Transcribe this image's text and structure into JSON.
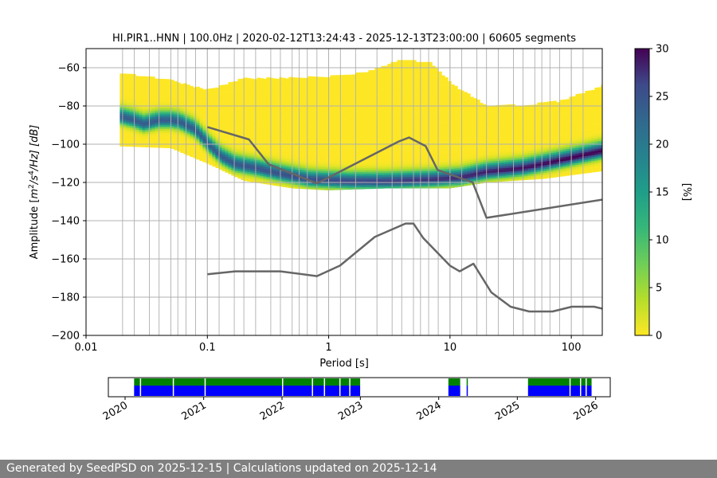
{
  "colors": {
    "grid": "#b0b0b0",
    "noise_model": "#666666",
    "coverage_top": "#008000",
    "coverage_bottom": "#0000ff"
  },
  "footer": {
    "text": "Generated by SeedPSD on 2025-12-15 | Calculations updated on 2025-12-14"
  },
  "chart_data": [
    {
      "type": "heatmap",
      "title": "HI.PIR1..HNN | 100.0Hz | 2020-02-12T13:24:43 - 2025-12-13T23:00:00 | 60605 segments",
      "xlabel": "Period [s]",
      "ylabel_parts": {
        "pre": "Amplitude [",
        "m": "m",
        "e2": "2",
        "s": "/s",
        "e4": "4",
        "hz": "/Hz] [dB]"
      },
      "xscale": "log",
      "xlim": [
        0.01,
        180
      ],
      "ylim": [
        -200,
        -50
      ],
      "x_ticks": [
        {
          "value": 0.01,
          "label": "0.01"
        },
        {
          "value": 0.1,
          "label": "0.1"
        },
        {
          "value": 1,
          "label": "1"
        },
        {
          "value": 10,
          "label": "10"
        },
        {
          "value": 100,
          "label": "100"
        }
      ],
      "y_ticks": [
        {
          "value": -60,
          "label": "−60"
        },
        {
          "value": -80,
          "label": "−80"
        },
        {
          "value": -100,
          "label": "−100"
        },
        {
          "value": -120,
          "label": "−120"
        },
        {
          "value": -140,
          "label": "−140"
        },
        {
          "value": -160,
          "label": "−160"
        },
        {
          "value": -180,
          "label": "−180"
        },
        {
          "value": -200,
          "label": "−200"
        }
      ],
      "grid": true,
      "period_gridlines": [
        0.02,
        0.025,
        0.0333,
        0.04,
        0.05,
        0.0571,
        0.0667,
        0.08,
        0.1,
        0.125,
        0.1667,
        0.2,
        0.25,
        0.3333,
        0.4,
        0.5,
        0.5714,
        0.6667,
        0.8,
        1.0,
        1.25,
        1.6667,
        2.5,
        3.3333,
        4.0,
        5.0,
        5.7143,
        6.6667,
        8.0,
        10,
        12.5,
        16.6667,
        20,
        25,
        33.3333,
        40,
        50,
        57.1429,
        66.6667,
        80,
        100,
        125
      ],
      "heatmap": {
        "x_start": 0.019,
        "x_end": 180,
        "mode_curve": [
          {
            "x": 0.019,
            "y": -86
          },
          {
            "x": 0.025,
            "y": -88
          },
          {
            "x": 0.03,
            "y": -90
          },
          {
            "x": 0.04,
            "y": -88
          },
          {
            "x": 0.05,
            "y": -88
          },
          {
            "x": 0.06,
            "y": -89
          },
          {
            "x": 0.08,
            "y": -93
          },
          {
            "x": 0.1,
            "y": -100
          },
          {
            "x": 0.13,
            "y": -107
          },
          {
            "x": 0.17,
            "y": -111
          },
          {
            "x": 0.25,
            "y": -113
          },
          {
            "x": 0.4,
            "y": -116
          },
          {
            "x": 0.7,
            "y": -119
          },
          {
            "x": 1.5,
            "y": -120
          },
          {
            "x": 3,
            "y": -120
          },
          {
            "x": 7,
            "y": -119
          },
          {
            "x": 12,
            "y": -118
          },
          {
            "x": 20,
            "y": -115
          },
          {
            "x": 40,
            "y": -113
          },
          {
            "x": 80,
            "y": -109
          },
          {
            "x": 180,
            "y": -104
          }
        ],
        "upper_curve": [
          {
            "x": 0.019,
            "y": -63
          },
          {
            "x": 0.05,
            "y": -67
          },
          {
            "x": 0.1,
            "y": -72
          },
          {
            "x": 0.2,
            "y": -66
          },
          {
            "x": 0.4,
            "y": -66
          },
          {
            "x": 1,
            "y": -65
          },
          {
            "x": 2,
            "y": -63
          },
          {
            "x": 4,
            "y": -56
          },
          {
            "x": 7,
            "y": -58
          },
          {
            "x": 11,
            "y": -70
          },
          {
            "x": 20,
            "y": -80
          },
          {
            "x": 40,
            "y": -80
          },
          {
            "x": 80,
            "y": -78
          },
          {
            "x": 180,
            "y": -70
          }
        ],
        "lower_curve": [
          {
            "x": 0.019,
            "y": -101
          },
          {
            "x": 0.05,
            "y": -102
          },
          {
            "x": 0.1,
            "y": -110
          },
          {
            "x": 0.2,
            "y": -119
          },
          {
            "x": 0.5,
            "y": -123
          },
          {
            "x": 1,
            "y": -124
          },
          {
            "x": 3,
            "y": -123
          },
          {
            "x": 10,
            "y": -123
          },
          {
            "x": 20,
            "y": -120
          },
          {
            "x": 60,
            "y": -118
          },
          {
            "x": 180,
            "y": -114
          }
        ]
      },
      "series": [
        {
          "points": [
            {
              "x": 0.1,
              "y": -91
            },
            {
              "x": 0.22,
              "y": -97.5
            },
            {
              "x": 0.32,
              "y": -110.5
            },
            {
              "x": 0.8,
              "y": -120.5
            },
            {
              "x": 3.8,
              "y": -98.5
            },
            {
              "x": 4.6,
              "y": -96.5
            },
            {
              "x": 6.3,
              "y": -101
            },
            {
              "x": 7.9,
              "y": -113.5
            },
            {
              "x": 15.4,
              "y": -120
            },
            {
              "x": 20,
              "y": -138.5
            },
            {
              "x": 180,
              "y": -129
            }
          ]
        },
        {
          "points": [
            {
              "x": 0.1,
              "y": -168
            },
            {
              "x": 0.17,
              "y": -166.5
            },
            {
              "x": 0.4,
              "y": -166.5
            },
            {
              "x": 0.8,
              "y": -169
            },
            {
              "x": 1.24,
              "y": -163.5
            },
            {
              "x": 2.4,
              "y": -148.5
            },
            {
              "x": 4.3,
              "y": -141.5
            },
            {
              "x": 5.0,
              "y": -141.5
            },
            {
              "x": 6.0,
              "y": -149
            },
            {
              "x": 10,
              "y": -163.5
            },
            {
              "x": 12,
              "y": -166.5
            },
            {
              "x": 15.6,
              "y": -162.5
            },
            {
              "x": 21.9,
              "y": -177.5
            },
            {
              "x": 31.6,
              "y": -185
            },
            {
              "x": 45,
              "y": -187.5
            },
            {
              "x": 70,
              "y": -187.5
            },
            {
              "x": 101,
              "y": -185
            },
            {
              "x": 154,
              "y": -185
            },
            {
              "x": 180,
              "y": -186
            }
          ]
        }
      ]
    },
    {
      "type": "colorbar",
      "label": "[%]",
      "range": [
        0,
        30
      ],
      "ticks": [
        {
          "value": 0,
          "label": "0"
        },
        {
          "value": 5,
          "label": "5"
        },
        {
          "value": 10,
          "label": "10"
        },
        {
          "value": 15,
          "label": "15"
        },
        {
          "value": 20,
          "label": "20"
        },
        {
          "value": 25,
          "label": "25"
        },
        {
          "value": 30,
          "label": "30"
        }
      ],
      "colormap_stops": [
        {
          "value": 0,
          "color": "#fde725"
        },
        {
          "value": 3.75,
          "color": "#b5de2b"
        },
        {
          "value": 7.5,
          "color": "#6ece58"
        },
        {
          "value": 11.25,
          "color": "#35b779"
        },
        {
          "value": 15,
          "color": "#1f9e89"
        },
        {
          "value": 18.75,
          "color": "#26828e"
        },
        {
          "value": 22.5,
          "color": "#31688e"
        },
        {
          "value": 26.25,
          "color": "#3e4989"
        },
        {
          "value": 30,
          "color": "#440154"
        }
      ]
    },
    {
      "type": "timeline",
      "xlim": [
        "2019-10-15",
        "2026-03-10"
      ],
      "x_ticks": [
        {
          "value": "2020-01-01",
          "label": "2020"
        },
        {
          "value": "2021-01-01",
          "label": "2021"
        },
        {
          "value": "2022-01-01",
          "label": "2022"
        },
        {
          "value": "2023-01-01",
          "label": "2023"
        },
        {
          "value": "2024-01-01",
          "label": "2024"
        },
        {
          "value": "2025-01-01",
          "label": "2025"
        },
        {
          "value": "2026-01-01",
          "label": "2026"
        }
      ],
      "coverage_intervals": [
        {
          "start": "2020-02-12",
          "end": "2022-12-31"
        },
        {
          "start": "2024-02-15",
          "end": "2024-04-10"
        },
        {
          "start": "2024-05-10",
          "end": "2024-05-15"
        },
        {
          "start": "2025-02-20",
          "end": "2025-12-13"
        }
      ],
      "gaps": [
        "2020-03-10",
        "2020-08-10",
        "2021-01-05",
        "2022-01-01",
        "2022-05-20",
        "2022-07-15",
        "2022-09-25",
        "2022-11-10",
        "2025-09-01",
        "2025-10-20",
        "2025-11-15"
      ]
    }
  ]
}
